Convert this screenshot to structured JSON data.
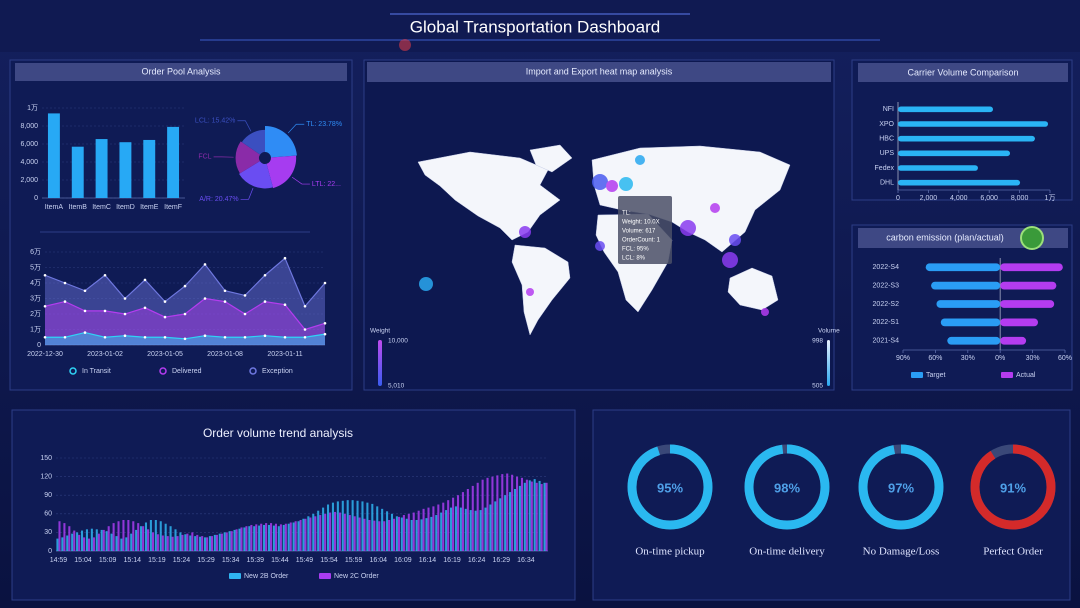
{
  "title": "Global Transportation Dashboard",
  "panel_titles": [
    "Order Pool Analysis",
    "Import and Export heat map analysis",
    "Carrier Volume Comparison",
    "carbon emission (plan/actual)",
    "Order volume trend analysis"
  ],
  "map": {
    "weight_legend": {
      "title": "Weight",
      "max": "10,000",
      "min": "5,010"
    },
    "volume_legend": {
      "title": "Volume",
      "max": "998",
      "min": "505"
    },
    "tooltip": [
      "TL:",
      "Weight: 10.0X",
      "Volume: 617",
      "OrderCount: 1",
      "FCL: 95%",
      "LCL: 8%"
    ]
  },
  "chart_data": [
    {
      "type": "bar",
      "categories": [
        "ItemA",
        "ItemB",
        "ItemC",
        "ItemD",
        "ItemE",
        "ItemF"
      ],
      "values": [
        9400,
        5700,
        6550,
        6200,
        6450,
        7900
      ],
      "color": "#27a9f5",
      "ylim": [
        0,
        10000
      ],
      "yticks": [
        0,
        {
          "value": 2000,
          "label": "2,000"
        },
        {
          "value": 4000,
          "label": "4,000"
        },
        {
          "value": 6000,
          "label": "6,000"
        },
        {
          "value": 8000,
          "label": "8,000"
        },
        {
          "value": 10000,
          "label": "1万"
        }
      ],
      "grid": true
    },
    {
      "type": "pie",
      "categories": [
        "TL",
        "LTL",
        "A/R",
        "FCL",
        "LCL"
      ],
      "values": [
        23.78,
        22,
        20.47,
        18.33,
        15.42
      ],
      "labels": [
        "TL: 23.78%",
        "LTL: 22...",
        "A/R: 20.47%",
        "FCL",
        "LCL: 15.42%"
      ],
      "colors": [
        "#2f8cf5",
        "#a63cf0",
        "#6a4df2",
        "#8a2ba8",
        "#3b4fc0"
      ]
    },
    {
      "type": "area",
      "categories": [
        "2022-12-30",
        null,
        null,
        "2023-01-02",
        null,
        null,
        "2023-01-05",
        null,
        null,
        "2023-01-08",
        null,
        null,
        "2023-01-11",
        null,
        null
      ],
      "series": [
        {
          "name": "In Transit",
          "color": "#2fd3f5",
          "values": [
            5000,
            5000,
            8000,
            5000,
            6000,
            5000,
            5000,
            4000,
            6000,
            5000,
            5000,
            6000,
            5000,
            5000,
            7000
          ]
        },
        {
          "name": "Delivered",
          "color": "#b43cf0",
          "values": [
            25000,
            28000,
            22000,
            22000,
            20000,
            24000,
            18000,
            20000,
            30000,
            28000,
            20000,
            28000,
            26000,
            10000,
            14000
          ]
        },
        {
          "name": "Exception",
          "color": "#6f78e0",
          "values": [
            45000,
            40000,
            35000,
            45000,
            30000,
            42000,
            28000,
            38000,
            52000,
            35000,
            32000,
            45000,
            56000,
            25000,
            40000
          ]
        }
      ],
      "ylim": [
        0,
        60000
      ],
      "yticks": [
        0,
        {
          "value": 10000,
          "label": "1万"
        },
        {
          "value": 20000,
          "label": "2万"
        },
        {
          "value": 30000,
          "label": "3万"
        },
        {
          "value": 40000,
          "label": "4万"
        },
        {
          "value": 50000,
          "label": "5万"
        },
        {
          "value": 60000,
          "label": "6万"
        }
      ],
      "grid": true
    },
    {
      "type": "barh",
      "categories": [
        "NFI",
        "XPO",
        "HBC",
        "UPS",
        "Fedex",
        "DHL"
      ],
      "values": [
        6250,
        9870,
        9010,
        7370,
        5260,
        8030
      ],
      "color": "#2ab4f5",
      "xlim": [
        0,
        10000
      ],
      "xticks": [
        0,
        {
          "value": 2000,
          "label": "2,000"
        },
        {
          "value": 4000,
          "label": "4,000"
        },
        {
          "value": 6000,
          "label": "6,000"
        },
        {
          "value": 8000,
          "label": "8,000"
        },
        {
          "value": 10000,
          "label": "1万"
        }
      ]
    },
    {
      "type": "barh",
      "categories": [
        "2022-S4",
        "2022-S3",
        "2022-S2",
        "2022-S1",
        "2021-S4"
      ],
      "series": [
        {
          "name": "Target",
          "color": "#2a9df5",
          "values": [
            -69,
            -64,
            -59,
            -55,
            -49
          ]
        },
        {
          "name": "Actual",
          "color": "#b43cf0",
          "values": [
            58,
            52,
            50,
            35,
            24
          ]
        }
      ],
      "xlim": [
        -90,
        60
      ],
      "xticks": [
        {
          "value": -90,
          "label": "90%"
        },
        {
          "value": -60,
          "label": "60%"
        },
        {
          "value": -30,
          "label": "30%"
        },
        {
          "value": 0,
          "label": "0%"
        },
        {
          "value": 30,
          "label": "30%"
        },
        {
          "value": 60,
          "label": "60%"
        }
      ]
    },
    {
      "type": "bar",
      "categories": [
        "14:59",
        null,
        null,
        null,
        null,
        "15:04",
        null,
        null,
        null,
        null,
        "15:09",
        null,
        null,
        null,
        null,
        "15:14",
        null,
        null,
        null,
        null,
        "15:19",
        null,
        null,
        null,
        null,
        "15:24",
        null,
        null,
        null,
        null,
        "15:29",
        null,
        null,
        null,
        null,
        "15:34",
        null,
        null,
        null,
        null,
        "15:39",
        null,
        null,
        null,
        null,
        "15:44",
        null,
        null,
        null,
        null,
        "15:49",
        null,
        null,
        null,
        null,
        "15:54",
        null,
        null,
        null,
        null,
        "15:59",
        null,
        null,
        null,
        null,
        "16:04",
        null,
        null,
        null,
        null,
        "16:09",
        null,
        null,
        null,
        null,
        "16:14",
        null,
        null,
        null,
        null,
        "16:19",
        null,
        null,
        null,
        null,
        "16:24",
        null,
        null,
        null,
        null,
        "16:29",
        null,
        null,
        null,
        null,
        "16:34",
        null,
        null,
        null,
        null
      ],
      "series": [
        {
          "name": "New 2B Order",
          "color": "#2fb4f0",
          "values": [
            20,
            22,
            25,
            28,
            30,
            33,
            35,
            36,
            35,
            34,
            32,
            28,
            24,
            20,
            22,
            28,
            34,
            40,
            46,
            50,
            50,
            48,
            44,
            40,
            35,
            30,
            27,
            25,
            24,
            23,
            22,
            24,
            26,
            28,
            30,
            32,
            34,
            36,
            38,
            40,
            40,
            41,
            42,
            42,
            41,
            40,
            42,
            44,
            46,
            48,
            52,
            56,
            60,
            65,
            70,
            75,
            78,
            80,
            81,
            82,
            82,
            81,
            80,
            78,
            76,
            72,
            68,
            64,
            60,
            56,
            54,
            52,
            50,
            50,
            51,
            53,
            55,
            58,
            62,
            66,
            70,
            72,
            70,
            68,
            66,
            65,
            66,
            70,
            75,
            80,
            85,
            90,
            95,
            100,
            105,
            110,
            114,
            116,
            113,
            110
          ]
        },
        {
          "name": "New 2C Order",
          "color": "#a83cf0",
          "values": [
            48,
            45,
            40,
            33,
            26,
            22,
            20,
            22,
            28,
            34,
            40,
            45,
            48,
            50,
            50,
            48,
            45,
            40,
            35,
            30,
            27,
            25,
            24,
            23,
            24,
            26,
            28,
            30,
            26,
            24,
            22,
            24,
            26,
            28,
            30,
            32,
            35,
            38,
            40,
            42,
            43,
            44,
            45,
            45,
            44,
            43,
            44,
            46,
            48,
            50,
            52,
            54,
            56,
            58,
            60,
            62,
            63,
            62,
            60,
            58,
            56,
            54,
            52,
            50,
            49,
            48,
            48,
            50,
            52,
            55,
            58,
            60,
            62,
            65,
            68,
            70,
            72,
            75,
            78,
            82,
            86,
            90,
            95,
            100,
            105,
            110,
            115,
            118,
            120,
            122,
            124,
            125,
            123,
            120,
            118,
            115,
            112,
            110,
            108,
            110
          ]
        }
      ],
      "ylim": [
        0,
        150
      ],
      "yticks": [
        0,
        30,
        60,
        90,
        120,
        150
      ],
      "grid": true
    },
    {
      "type": "gauge",
      "categories": [
        "On-time pickup",
        "On-time delivery",
        "No Damage/Loss",
        "Perfect Order"
      ],
      "values": [
        95,
        98,
        97,
        91
      ],
      "value_labels": [
        "95%",
        "98%",
        "97%",
        "91%"
      ],
      "colors": [
        "#2ab8f0",
        "#2ab8f0",
        "#2ab8f0",
        "#d42a2a"
      ],
      "ylim": [
        0,
        100
      ]
    }
  ]
}
